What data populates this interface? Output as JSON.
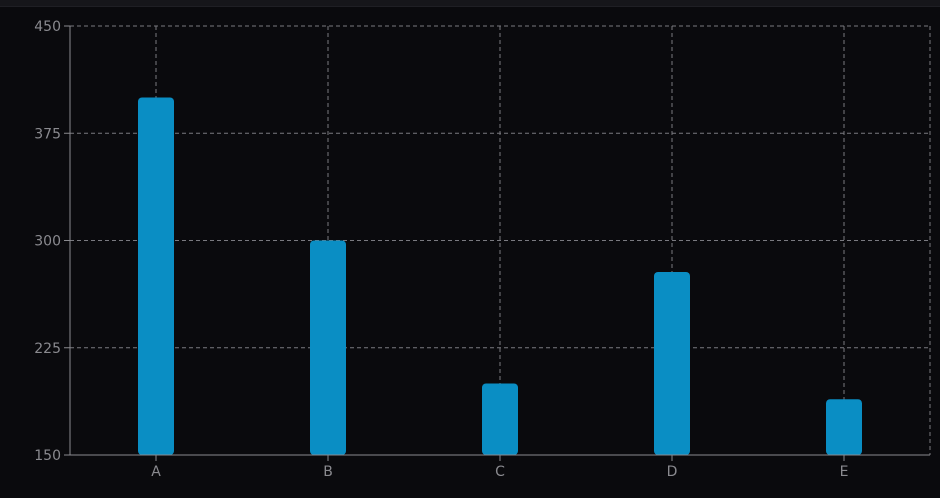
{
  "chart_data": {
    "type": "bar",
    "title": "",
    "xlabel": "",
    "ylabel": "",
    "categories": [
      "A",
      "B",
      "C",
      "D",
      "E"
    ],
    "values": [
      400,
      300,
      200,
      278,
      189
    ],
    "ylim": [
      150,
      450
    ],
    "yticks": [
      "150",
      "225",
      "300",
      "375",
      "450"
    ],
    "grid": true,
    "legend": "none",
    "colors": {
      "bar": "#0a8ec4",
      "grid": "#7a7a80",
      "axis": "#8a8a8f",
      "background": "#0a0a0d"
    }
  }
}
